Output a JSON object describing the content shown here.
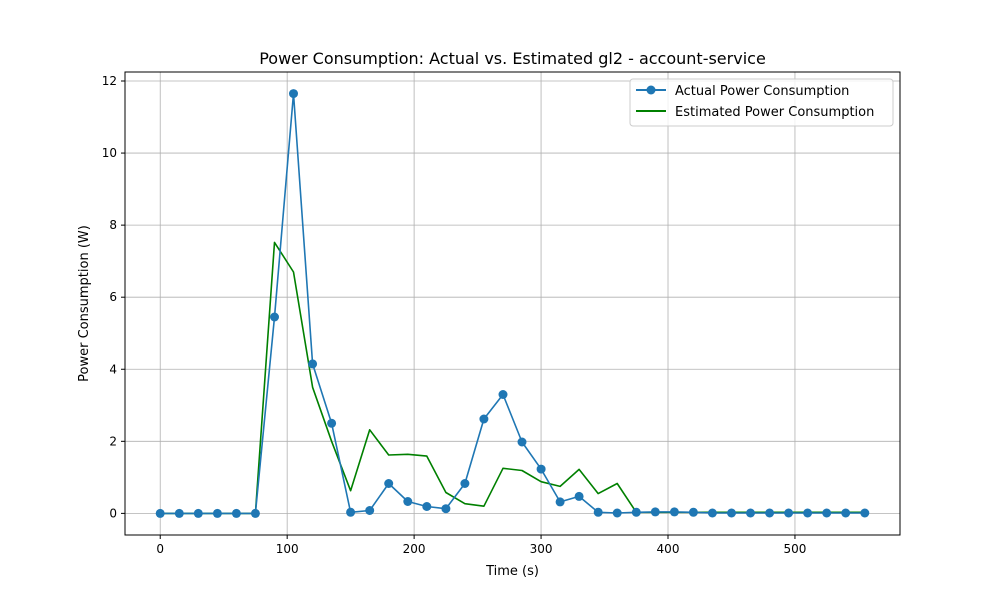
{
  "chart_data": {
    "type": "line",
    "title": "Power Consumption: Actual vs. Estimated gl2 - account-service",
    "xlabel": "Time (s)",
    "ylabel": "Power Consumption (W)",
    "xlim": [
      -27.75,
      582.75
    ],
    "ylim": [
      -0.6,
      12.25
    ],
    "xticks": [
      0,
      100,
      200,
      300,
      400,
      500
    ],
    "yticks": [
      0,
      2,
      4,
      6,
      8,
      10,
      12
    ],
    "grid": true,
    "legend_position": "top-right",
    "x": [
      0,
      15,
      30,
      45,
      60,
      75,
      90,
      105,
      120,
      135,
      150,
      165,
      180,
      195,
      210,
      225,
      240,
      255,
      270,
      285,
      300,
      315,
      330,
      345,
      360,
      375,
      390,
      405,
      420,
      435,
      450,
      465,
      480,
      495,
      510,
      525,
      540,
      555
    ],
    "series": [
      {
        "name": "Actual Power Consumption",
        "color": "#1f77b4",
        "marker": "circle",
        "values": [
          0,
          0,
          0,
          0,
          0,
          0,
          5.45,
          11.65,
          4.15,
          2.5,
          0.03,
          0.08,
          0.83,
          0.33,
          0.19,
          0.13,
          0.83,
          2.62,
          3.3,
          1.98,
          1.23,
          0.32,
          0.47,
          0.03,
          0.01,
          0.03,
          0.04,
          0.04,
          0.03,
          0.01,
          0.01,
          0.01,
          0.01,
          0.01,
          0.01,
          0.01,
          0.01,
          0.01
        ]
      },
      {
        "name": "Estimated Power Consumption",
        "color": "#008000",
        "marker": "none",
        "values": [
          0,
          0,
          0,
          0,
          0,
          0,
          7.52,
          6.7,
          3.5,
          2.0,
          0.63,
          2.32,
          1.62,
          1.64,
          1.59,
          0.58,
          0.27,
          0.2,
          1.25,
          1.19,
          0.88,
          0.75,
          1.22,
          0.55,
          0.83,
          0.03,
          0.03,
          0.03,
          0.03,
          0.03,
          0.03,
          0.03,
          0.03,
          0.03,
          0.03,
          0.03,
          0.03,
          0.03
        ]
      }
    ]
  }
}
